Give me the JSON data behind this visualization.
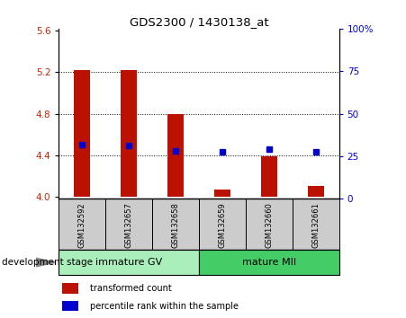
{
  "title": "GDS2300 / 1430138_at",
  "samples": [
    "GSM132592",
    "GSM132657",
    "GSM132658",
    "GSM132659",
    "GSM132660",
    "GSM132661"
  ],
  "bar_bottoms": [
    4.0,
    4.0,
    4.0,
    4.0,
    4.0,
    4.0
  ],
  "bar_tops": [
    5.22,
    5.22,
    4.8,
    4.07,
    4.39,
    4.1
  ],
  "percentile_values": [
    4.5,
    4.49,
    4.445,
    4.432,
    4.46,
    4.432
  ],
  "bar_color": "#BB1100",
  "dot_color": "#0000CC",
  "ylim_left": [
    3.98,
    5.62
  ],
  "ylim_right": [
    0,
    100
  ],
  "yticks_left": [
    4.0,
    4.4,
    4.8,
    5.2,
    5.6
  ],
  "yticks_right": [
    0,
    25,
    50,
    75,
    100
  ],
  "ytick_labels_right": [
    "0",
    "25",
    "50",
    "75",
    "100%"
  ],
  "grid_values": [
    4.4,
    4.8,
    5.2
  ],
  "groups": [
    {
      "label": "immature GV",
      "start": 0,
      "end": 3,
      "color": "#AAEEBB"
    },
    {
      "label": "mature MII",
      "start": 3,
      "end": 6,
      "color": "#44CC66"
    }
  ],
  "group_row_label": "development stage",
  "legend_bar_label": "transformed count",
  "legend_dot_label": "percentile rank within the sample",
  "bar_width": 0.35,
  "tick_label_color_left": "#CC2200",
  "tick_label_color_right": "#0000CC",
  "sample_box_color": "#CCCCCC",
  "sample_box_border": "#000000"
}
